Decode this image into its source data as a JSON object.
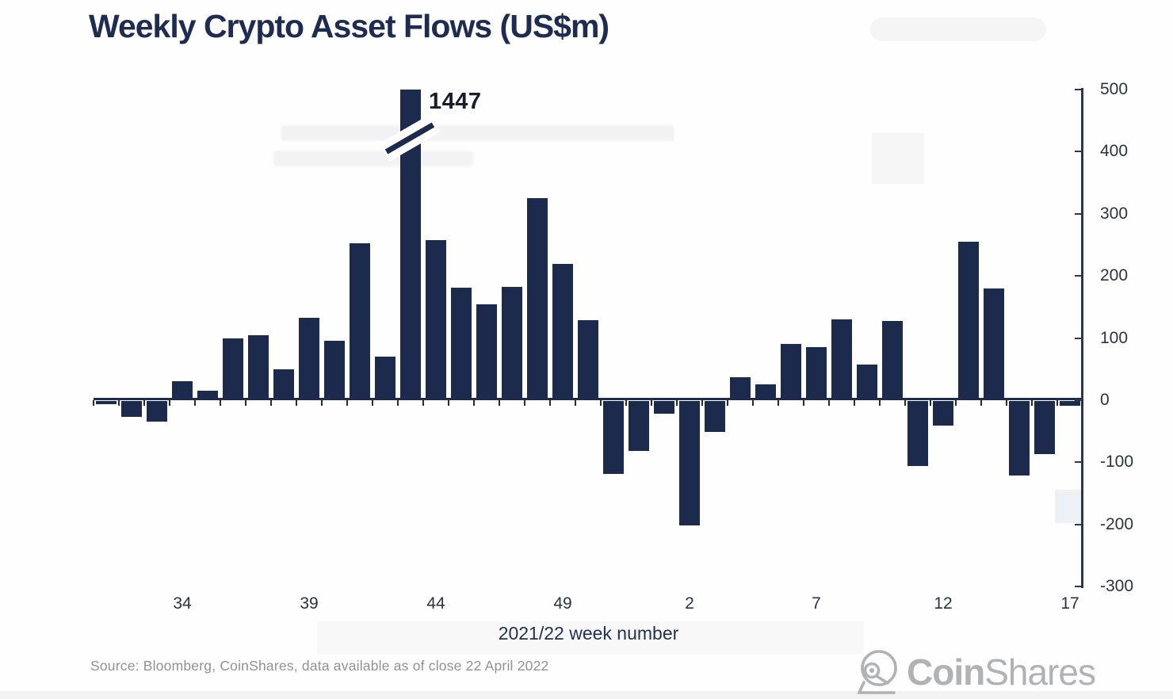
{
  "title": "Weekly Crypto Asset Flows (US$m)",
  "annotation": {
    "label": "1447"
  },
  "axis_title": "2021/22 week number",
  "source_note": "Source: Bloomberg, CoinShares, data available as of close 22 April 2022",
  "logo": {
    "bold": "Coin",
    "light": "Shares",
    "icon": "coinshares-helmet-icon"
  },
  "colors": {
    "bar": "#1c2a4e",
    "title": "#1e2c52",
    "axis": "#2b3750",
    "tick_label": "#2c3340",
    "source_text": "#909295",
    "logo_gray": "#b1b2b5",
    "background": "#fefefe"
  },
  "chart_data": {
    "type": "bar",
    "title": "Weekly Crypto Asset Flows (US$m)",
    "xlabel": "2021/22 week number",
    "ylabel": "",
    "ylim": [
      -300,
      500
    ],
    "grid": false,
    "legend": "none",
    "axis_side": "right",
    "y_ticks": [
      500,
      400,
      300,
      200,
      100,
      0,
      -100,
      -200,
      -300
    ],
    "x_tick_labels": [
      "34",
      "39",
      "44",
      "49",
      "2",
      "7",
      "12",
      "17"
    ],
    "x_tick_label_indices": [
      3,
      8,
      13,
      18,
      23,
      28,
      33,
      38
    ],
    "categories": [
      "31",
      "32",
      "33",
      "34",
      "35",
      "36",
      "37",
      "38",
      "39",
      "40",
      "41",
      "42",
      "43",
      "44",
      "45",
      "46",
      "47",
      "48",
      "49",
      "50",
      "51",
      "52",
      "1",
      "2",
      "3",
      "4",
      "5",
      "6",
      "7",
      "8",
      "9",
      "10",
      "11",
      "12",
      "13",
      "14",
      "15",
      "16",
      "17"
    ],
    "values": [
      -5,
      -26,
      -33,
      31,
      15,
      100,
      105,
      50,
      133,
      96,
      253,
      70,
      1447,
      258,
      181,
      155,
      182,
      325,
      219,
      129,
      -118,
      -80,
      -20,
      -200,
      -50,
      37,
      25,
      90,
      85,
      130,
      58,
      128,
      -105,
      -40,
      255,
      180,
      -120,
      -85,
      -8
    ],
    "broken_bar": {
      "index": 12,
      "value": 1447,
      "display_cap": 500,
      "annotation": "1447"
    }
  }
}
